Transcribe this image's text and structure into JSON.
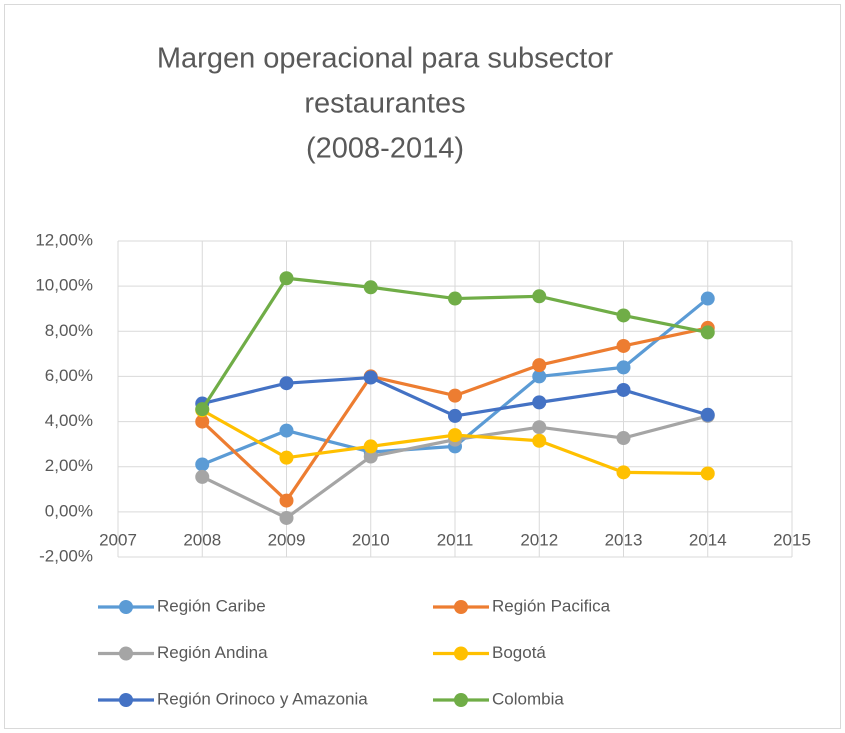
{
  "chart_data": {
    "type": "line",
    "title": [
      "Margen operacional para subsector",
      "restaurantes",
      "(2008-2014)"
    ],
    "x": [
      2008,
      2009,
      2010,
      2011,
      2012,
      2013,
      2014
    ],
    "series": [
      {
        "name": "Región Caribe",
        "color": "#5b9bd5",
        "values": [
          2.1,
          3.6,
          2.65,
          2.9,
          6.0,
          6.4,
          9.45
        ]
      },
      {
        "name": "Región Pacifica",
        "color": "#ed7d31",
        "values": [
          4.0,
          0.5,
          6.0,
          5.15,
          6.5,
          7.35,
          8.15
        ]
      },
      {
        "name": "Región Andina",
        "color": "#a5a5a5",
        "values": [
          1.55,
          -0.27,
          2.45,
          3.2,
          3.75,
          3.27,
          4.25
        ]
      },
      {
        "name": "Bogotá",
        "color": "#ffc000",
        "values": [
          4.5,
          2.4,
          2.9,
          3.4,
          3.15,
          1.75,
          1.7
        ]
      },
      {
        "name": "Región Orinoco y Amazonia",
        "color": "#4472c4",
        "values": [
          4.8,
          5.7,
          5.95,
          4.25,
          4.85,
          5.4,
          4.3
        ]
      },
      {
        "name": "Colombia",
        "color": "#70ad47",
        "values": [
          4.55,
          10.35,
          9.95,
          9.45,
          9.55,
          8.7,
          7.95
        ]
      }
    ],
    "xlim": [
      2007,
      2015
    ],
    "xticks": [
      2007,
      2008,
      2009,
      2010,
      2011,
      2012,
      2013,
      2014,
      2015
    ],
    "ylim": [
      -2,
      12
    ],
    "yticks": [
      {
        "value": -2,
        "label": "-2,00%"
      },
      {
        "value": 0,
        "label": "0,00%"
      },
      {
        "value": 2,
        "label": "2,00%"
      },
      {
        "value": 4,
        "label": "4,00%"
      },
      {
        "value": 6,
        "label": "6,00%"
      },
      {
        "value": 8,
        "label": "8,00%"
      },
      {
        "value": 10,
        "label": "10,00%"
      },
      {
        "value": 12,
        "label": "12,00%"
      }
    ],
    "grid": true,
    "legend": "bottom"
  }
}
